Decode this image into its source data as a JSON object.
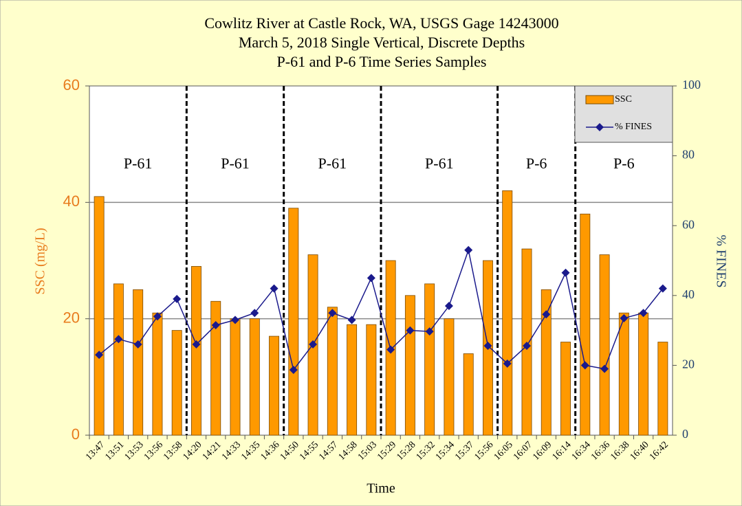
{
  "chart_data": {
    "type": "bar",
    "title": [
      "Cowlitz River at Castle Rock, WA, USGS Gage 14243000",
      "March 5, 2018 Single Vertical, Discrete Depths",
      "P-61 and P-6 Time Series Samples"
    ],
    "x_label": "Time",
    "y_label": "SSC (mg/L)",
    "y2_label": "% FINES",
    "categories": [
      "13:47",
      "13:51",
      "13:53",
      "13:56",
      "13:58",
      "14:20",
      "14:21",
      "14:33",
      "14:35",
      "14:36",
      "14:50",
      "14:55",
      "14:57",
      "14:58",
      "15:03",
      "15:29",
      "15:28",
      "15:32",
      "15:34",
      "15:37",
      "15:56",
      "16:05",
      "16:07",
      "16:09",
      "16:14",
      "16:34",
      "16:36",
      "16:38",
      "16:40",
      "16:42"
    ],
    "series": [
      {
        "name": "SSC",
        "type": "bar",
        "color": "#ff9900",
        "values": [
          41,
          26,
          25,
          21,
          18,
          29,
          23,
          20,
          20,
          17,
          39,
          31,
          22,
          19,
          19,
          30,
          24,
          26,
          20,
          14,
          30,
          42,
          32,
          25,
          16,
          38,
          31,
          21,
          21,
          16
        ]
      },
      {
        "name": "% FINES",
        "type": "line",
        "axis": "y2",
        "color": "#1a1a8c",
        "values": [
          23,
          27.5,
          26,
          34,
          39,
          26,
          31.5,
          33,
          35,
          42,
          18.7,
          26,
          35,
          33,
          45,
          24.5,
          30,
          29.7,
          37,
          53,
          25.6,
          20.5,
          25.6,
          34.6,
          46.5,
          20,
          19,
          33.5,
          35,
          42
        ]
      }
    ],
    "groups": [
      {
        "label": "P-61",
        "count": 5
      },
      {
        "label": "P-61",
        "count": 5
      },
      {
        "label": "P-61",
        "count": 5
      },
      {
        "label": "P-61",
        "count": 6
      },
      {
        "label": "P-6",
        "count": 4
      },
      {
        "label": "P-6",
        "count": 5
      }
    ],
    "ylim": [
      0,
      60
    ],
    "yticks": [
      0,
      20,
      40,
      60
    ],
    "y2lim": [
      0,
      100
    ],
    "y2ticks": [
      0,
      20,
      40,
      60,
      80,
      100
    ],
    "grid": true,
    "legend": "upper right"
  }
}
